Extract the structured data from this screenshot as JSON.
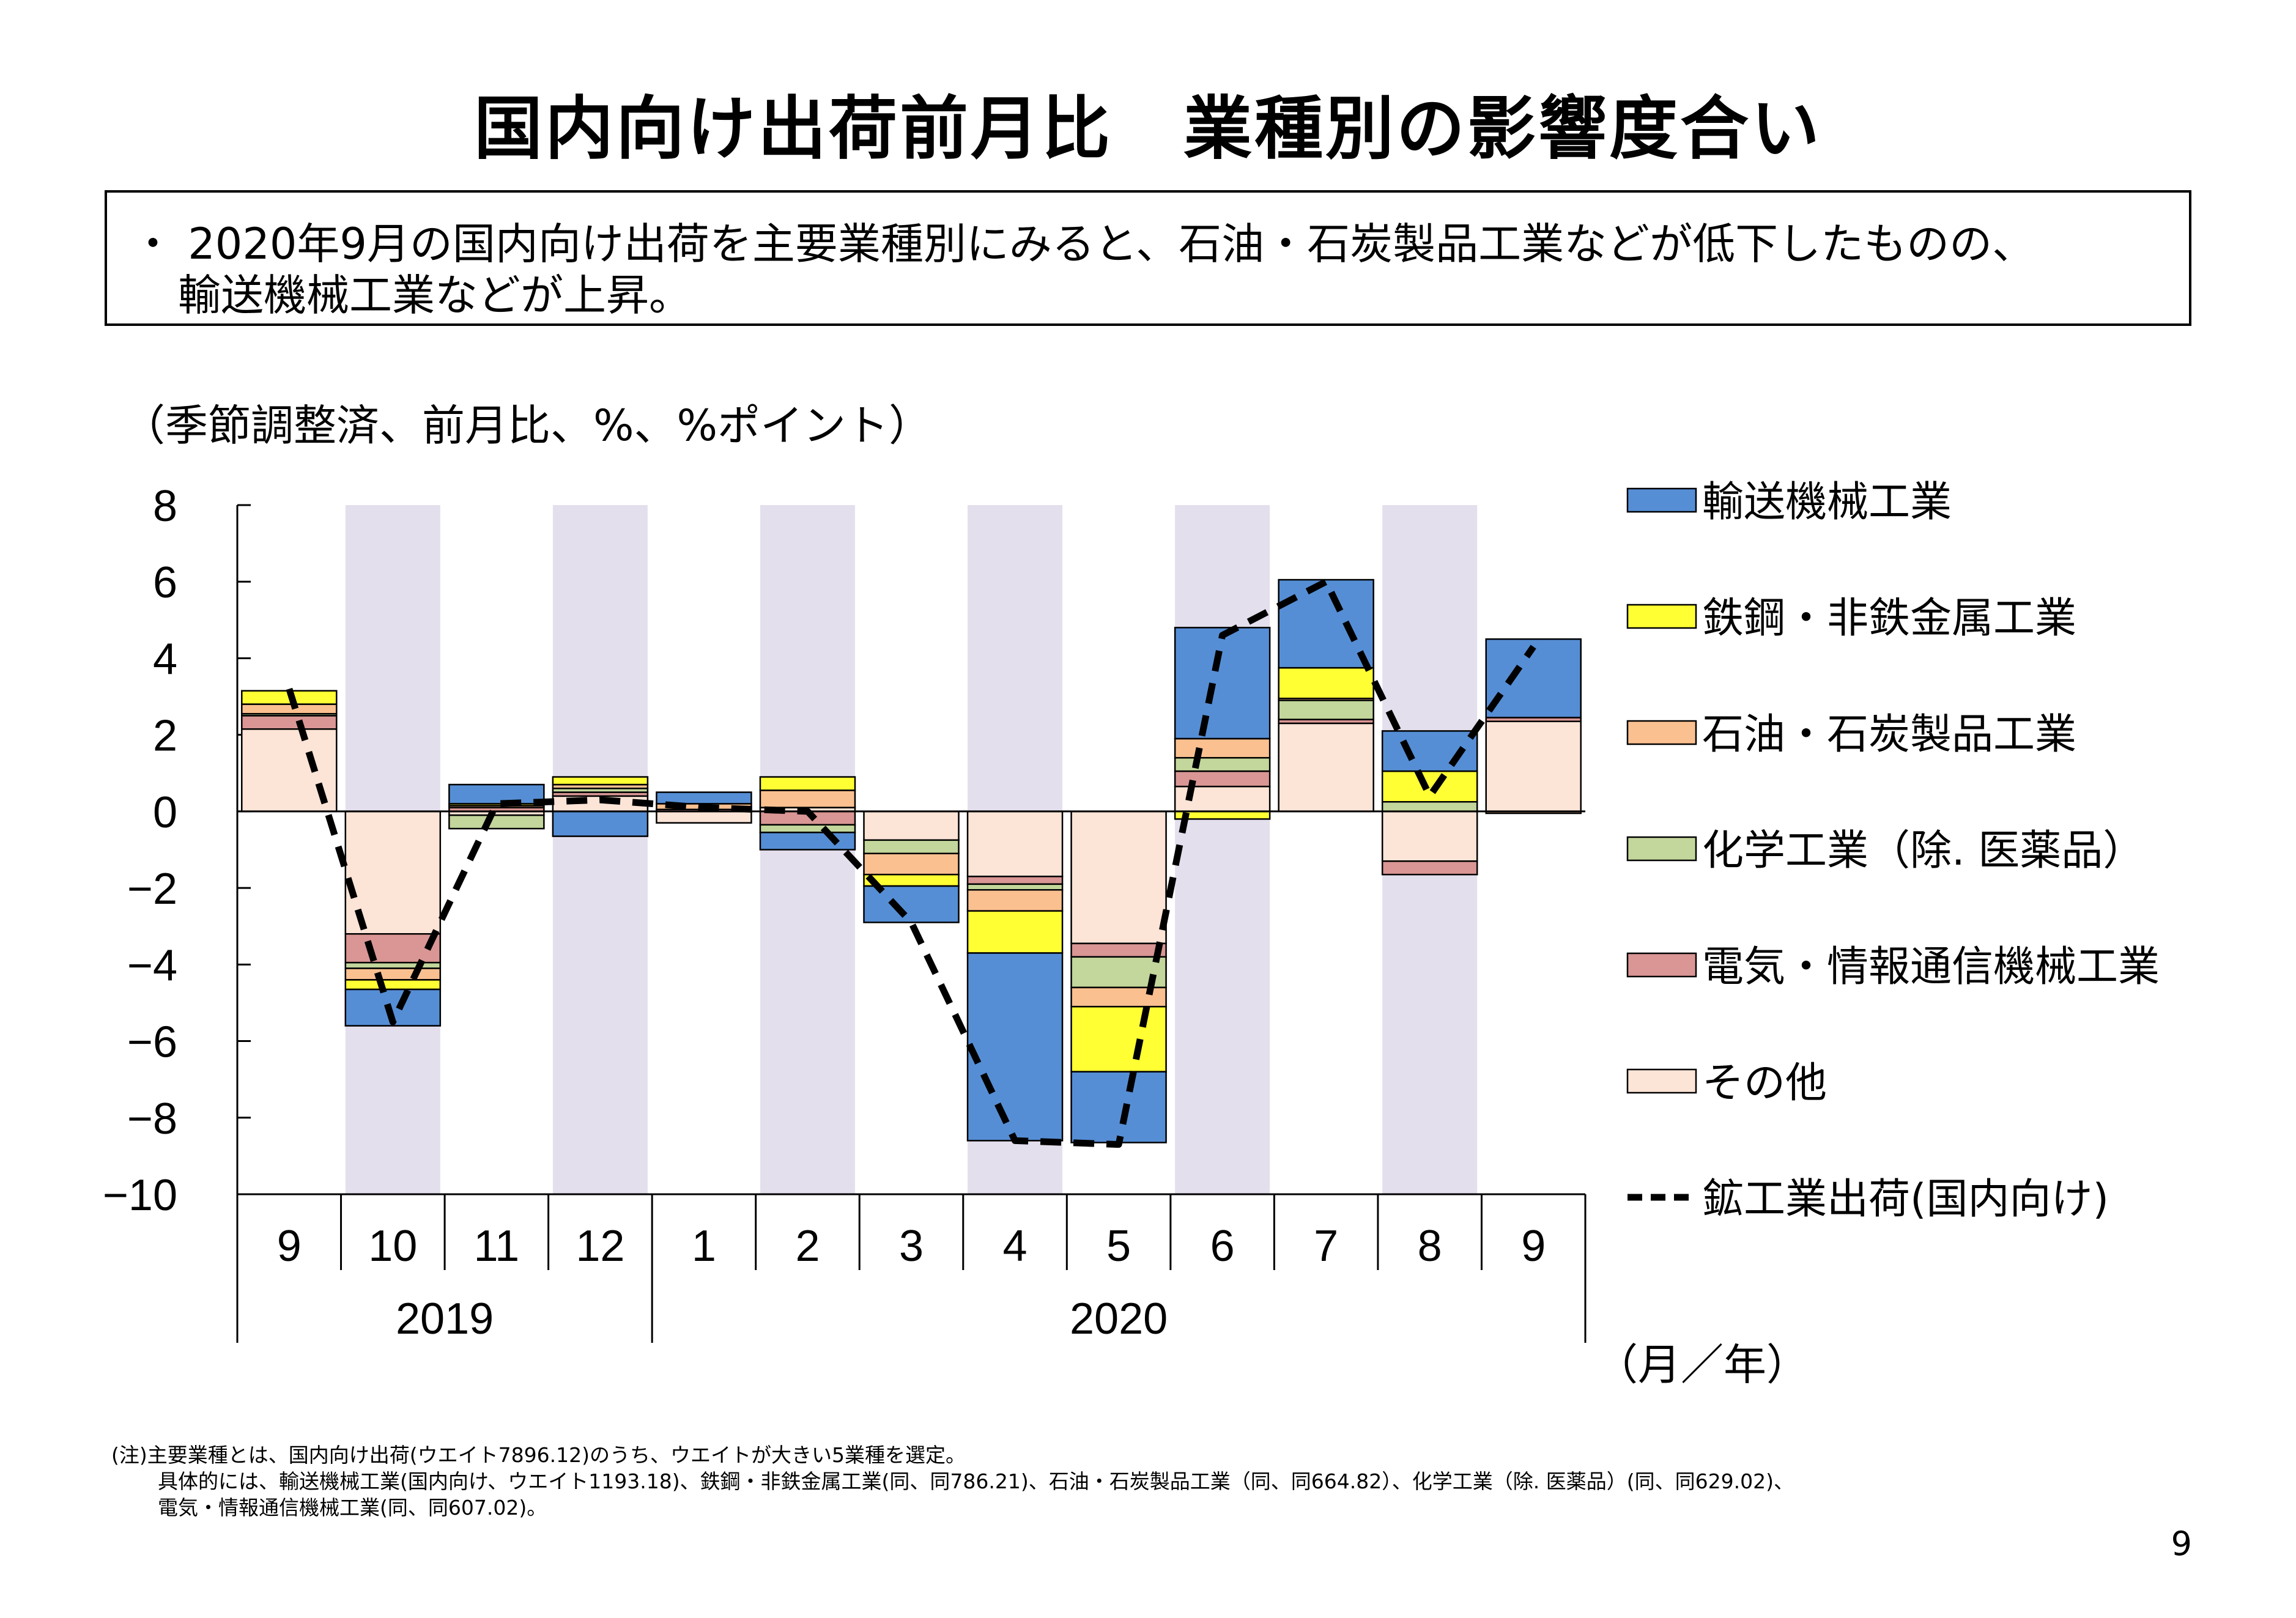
{
  "page": {
    "title": "国内向け出荷前月比　業種別の影響度合い",
    "summary_lines": [
      "・ 2020年9月の国内向け出荷を主要業種別にみると、石油・石炭製品工業などが低下したものの、",
      "輸送機械工業などが上昇。"
    ],
    "unit_note": "（季節調整済、前月比、%、%ポイント）",
    "footnotes": [
      "(注)主要業種とは、国内向け出荷(ウエイト7896.12)のうち、ウエイトが大きい5業種を選定。",
      "具体的には、輸送機械工業(国内向け、ウエイト1193.18)、鉄鋼・非鉄金属工業(同、同786.21)、石油・石炭製品工業（同、同664.82）、化学工業（除. 医薬品）(同、同629.02)、",
      "電気・情報通信機械工業(同、同607.02)。"
    ],
    "page_number": "9"
  },
  "colors": {
    "transport": "#558ED5",
    "steel": "#FFFF33",
    "petroleum": "#FAC090",
    "chemical": "#C3D69B",
    "electric": "#D99694",
    "other": "#FCE4D6",
    "shade": "#E4DFEC",
    "line": "#000000"
  },
  "chart_data": {
    "type": "bar",
    "stacked": true,
    "ylim": [
      -10,
      8
    ],
    "yticks": [
      "8",
      "6",
      "4",
      "2",
      "0",
      "−2",
      "−4",
      "−6",
      "−8",
      "−10"
    ],
    "categories": [
      "9",
      "10",
      "11",
      "12",
      "1",
      "2",
      "3",
      "4",
      "5",
      "6",
      "7",
      "8",
      "9"
    ],
    "year_labels": [
      {
        "label": "2019",
        "months": "9–12"
      },
      {
        "label": "2020",
        "months": "1–9"
      }
    ],
    "xunit_label": "（月／年）",
    "shaded_months": [
      "10",
      "12",
      "2",
      "4",
      "6",
      "8"
    ],
    "series": [
      {
        "key": "other",
        "name": "その他",
        "values": [
          2.15,
          -3.2,
          -0.1,
          0.4,
          -0.3,
          0.1,
          -0.75,
          -1.7,
          -3.45,
          0.65,
          2.3,
          -1.3,
          2.35
        ]
      },
      {
        "key": "electric",
        "name": "電気・情報通信機械工業",
        "values": [
          0.35,
          -0.75,
          0.1,
          0.1,
          0.05,
          -0.35,
          0.0,
          -0.2,
          -0.35,
          0.4,
          0.1,
          -0.35,
          0.1
        ]
      },
      {
        "key": "chemical",
        "name": "化学工業（除. 医薬品）",
        "values": [
          0.05,
          -0.15,
          -0.35,
          0.1,
          0.0,
          -0.2,
          -0.35,
          -0.15,
          -0.8,
          0.35,
          0.5,
          0.25,
          0.0
        ]
      },
      {
        "key": "petroleum",
        "name": "石油・石炭製品工業",
        "values": [
          0.25,
          -0.3,
          0.05,
          0.1,
          0.15,
          0.45,
          -0.55,
          -0.55,
          -0.5,
          0.5,
          0.05,
          0.0,
          -0.05
        ]
      },
      {
        "key": "steel",
        "name": "鉄鋼・非鉄金属工業",
        "values": [
          0.35,
          -0.25,
          0.05,
          0.2,
          0.0,
          0.35,
          -0.3,
          -1.1,
          -1.7,
          -0.2,
          0.8,
          0.8,
          0.0
        ]
      },
      {
        "key": "transport",
        "name": "輸送機械工業",
        "values": [
          0.0,
          -0.95,
          0.5,
          -0.65,
          0.3,
          -0.45,
          -0.95,
          -4.9,
          -1.85,
          2.9,
          2.3,
          1.05,
          2.05
        ]
      }
    ],
    "line": {
      "key": "total",
      "name": "鉱工業出荷(国内向け)",
      "values": [
        3.2,
        -5.5,
        0.2,
        0.3,
        0.1,
        0.0,
        -2.9,
        -8.6,
        -8.7,
        4.6,
        6.0,
        0.4,
        4.3
      ]
    },
    "legend_order": [
      "transport",
      "steel",
      "petroleum",
      "chemical",
      "electric",
      "other",
      "total"
    ],
    "legend_position": "right"
  }
}
